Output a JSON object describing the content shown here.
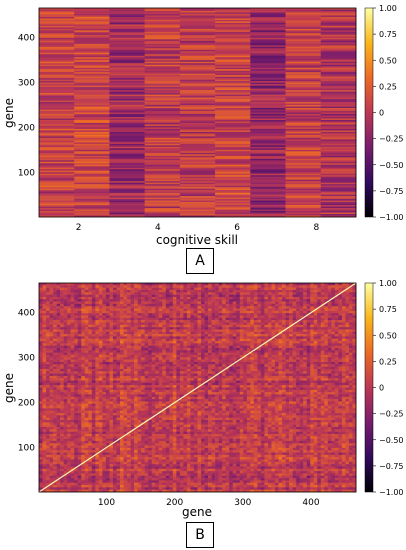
{
  "panels": [
    {
      "label": "A"
    },
    {
      "label": "B"
    }
  ],
  "chart_data": [
    {
      "type": "heatmap",
      "xlabel": "cognitive skill",
      "ylabel": "gene",
      "x_range": [
        1,
        9
      ],
      "y_range": [
        1,
        466
      ],
      "xticks": [
        "2",
        "4",
        "6",
        "8"
      ],
      "yticks": [
        "100",
        "200",
        "300",
        "400"
      ],
      "colorbar": {
        "range": [
          -1.0,
          1.0
        ],
        "ticks": [
          "1.00",
          "0.75",
          "0.50",
          "0.25",
          "0",
          "−0.25",
          "−0.50",
          "−0.75",
          "−1.00"
        ],
        "colormap": "inferno",
        "colors": [
          "#000004",
          "#320a5e",
          "#781c6d",
          "#bc3754",
          "#ed6925",
          "#fbb61a",
          "#fcffa4"
        ]
      },
      "grid": false
    },
    {
      "type": "heatmap",
      "xlabel": "gene",
      "ylabel": "gene",
      "x_range": [
        1,
        466
      ],
      "y_range": [
        1,
        466
      ],
      "xticks": [
        "100",
        "200",
        "300",
        "400"
      ],
      "yticks": [
        "100",
        "200",
        "300",
        "400"
      ],
      "diagonal": 1.0,
      "colorbar": {
        "range": [
          -1.0,
          1.0
        ],
        "ticks": [
          "1.00",
          "0.75",
          "0.50",
          "0.25",
          "0",
          "−0.25",
          "−0.50",
          "−0.75",
          "−1.00"
        ],
        "colormap": "inferno",
        "colors": [
          "#000004",
          "#320a5e",
          "#781c6d",
          "#bc3754",
          "#ed6925",
          "#fbb61a",
          "#fcffa4"
        ]
      },
      "grid": false
    }
  ]
}
